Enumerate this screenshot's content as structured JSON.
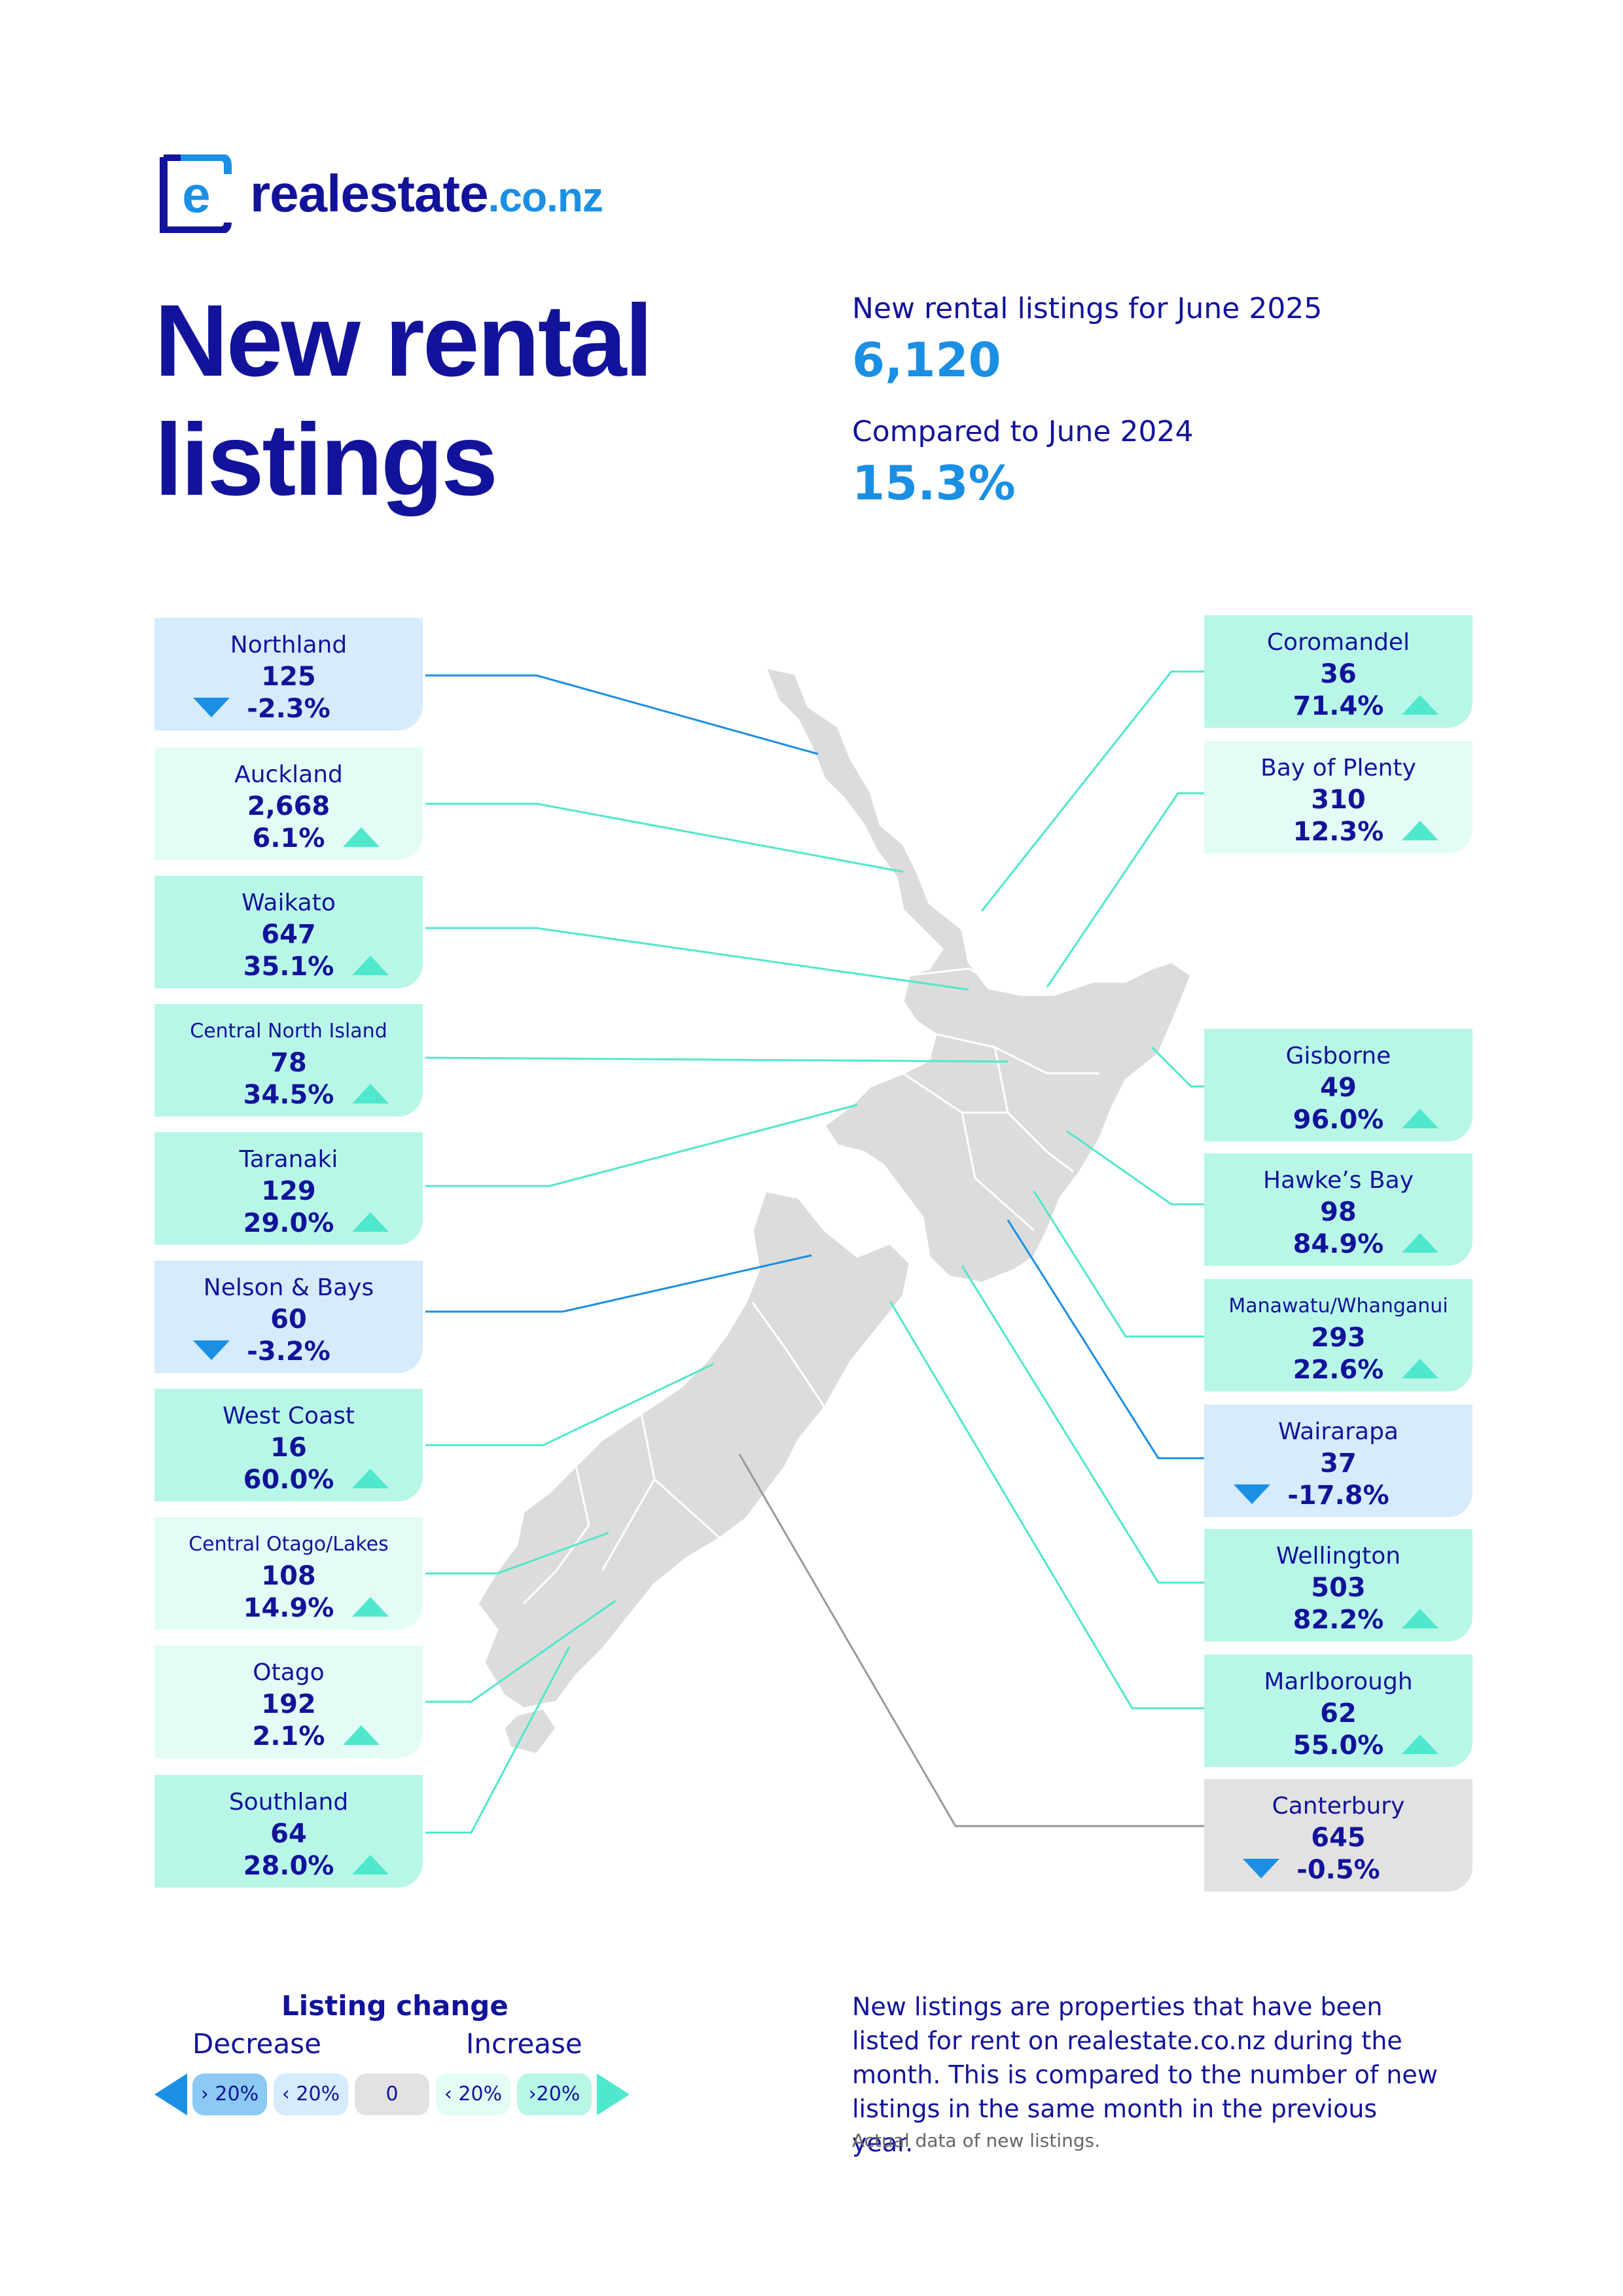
{
  "brand": {
    "name": "realestate",
    "suffix": ".co.nz",
    "mark_letter": "e"
  },
  "header": {
    "title_line1": "New rental",
    "title_line2": "listings",
    "listings_label": "New rental listings for June 2025",
    "listings_value": "6,120",
    "compare_label": "Compared to June 2024",
    "compare_value": "15.3%"
  },
  "colors": {
    "navy": "#12139a",
    "blue": "#1a8fe3",
    "teal": "#4fe8cc",
    "decrease_bg": "#d6ebfb",
    "increase_low_bg": "#e3fcf6",
    "increase_high_bg": "#b8f7e8",
    "zero_bg": "#e2e2e2",
    "land": "#dcdcdc"
  },
  "regions": [
    {
      "name": "Northland",
      "count": "125",
      "change": "-2.3%",
      "direction": "down",
      "band": "decrease"
    },
    {
      "name": "Auckland",
      "count": "2,668",
      "change": "6.1%",
      "direction": "up",
      "band": "increase_low"
    },
    {
      "name": "Waikato",
      "count": "647",
      "change": "35.1%",
      "direction": "up",
      "band": "increase_high"
    },
    {
      "name": "Central North Island",
      "count": "78",
      "change": "34.5%",
      "direction": "up",
      "band": "increase_high"
    },
    {
      "name": "Taranaki",
      "count": "129",
      "change": "29.0%",
      "direction": "up",
      "band": "increase_high"
    },
    {
      "name": "Nelson & Bays",
      "count": "60",
      "change": "-3.2%",
      "direction": "down",
      "band": "decrease"
    },
    {
      "name": "West Coast",
      "count": "16",
      "change": "60.0%",
      "direction": "up",
      "band": "increase_high"
    },
    {
      "name": "Central Otago/Lakes",
      "count": "108",
      "change": "14.9%",
      "direction": "up",
      "band": "increase_low"
    },
    {
      "name": "Otago",
      "count": "192",
      "change": "2.1%",
      "direction": "up",
      "band": "increase_low"
    },
    {
      "name": "Southland",
      "count": "64",
      "change": "28.0%",
      "direction": "up",
      "band": "increase_high"
    },
    {
      "name": "Coromandel",
      "count": "36",
      "change": "71.4%",
      "direction": "up",
      "band": "increase_high"
    },
    {
      "name": "Bay of Plenty",
      "count": "310",
      "change": "12.3%",
      "direction": "up",
      "band": "increase_low"
    },
    {
      "name": "Gisborne",
      "count": "49",
      "change": "96.0%",
      "direction": "up",
      "band": "increase_high"
    },
    {
      "name": "Hawke’s Bay",
      "count": "98",
      "change": "84.9%",
      "direction": "up",
      "band": "increase_high"
    },
    {
      "name": "Manawatu/Whanganui",
      "count": "293",
      "change": "22.6%",
      "direction": "up",
      "band": "increase_high"
    },
    {
      "name": "Wairarapa",
      "count": "37",
      "change": "-17.8%",
      "direction": "down",
      "band": "decrease"
    },
    {
      "name": "Wellington",
      "count": "503",
      "change": "82.2%",
      "direction": "up",
      "band": "increase_high"
    },
    {
      "name": "Marlborough",
      "count": "62",
      "change": "55.0%",
      "direction": "up",
      "band": "increase_high"
    },
    {
      "name": "Canterbury",
      "count": "645",
      "change": "-0.5%",
      "direction": "down",
      "band": "zero"
    }
  ],
  "legend": {
    "title": "Listing change",
    "decrease_label": "Decrease",
    "increase_label": "Increase",
    "pills": [
      "› 20%",
      "‹ 20%",
      "0",
      "‹ 20%",
      "›20%"
    ]
  },
  "footer": {
    "note": "New listings are properties that have been listed for rent on realestate.co.nz during the month. This is compared to the number of new listings in the same month in the previous year.",
    "source": "Actual data of new listings."
  }
}
